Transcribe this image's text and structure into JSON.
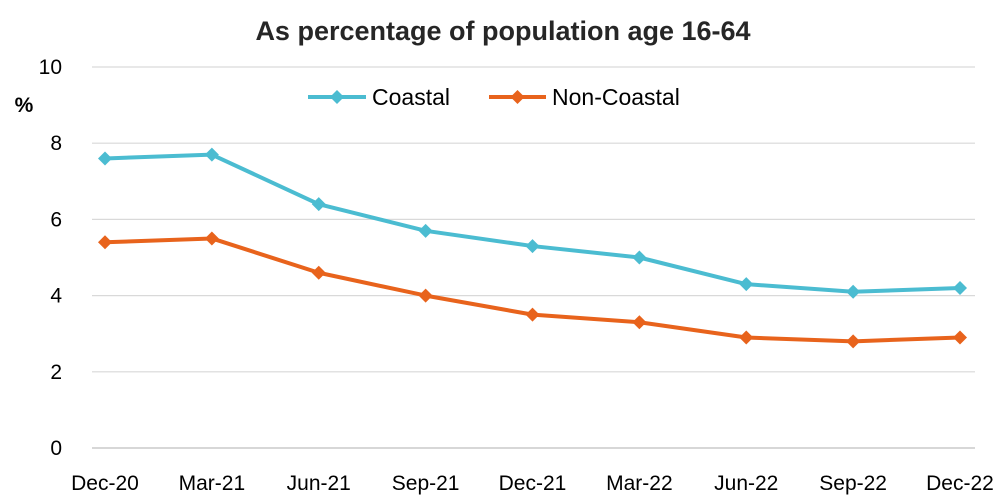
{
  "chart_data": {
    "type": "line",
    "title": "As percentage of population age 16-64",
    "ylabel": "%",
    "xlabel": "",
    "categories": [
      "Dec-20",
      "Mar-21",
      "Jun-21",
      "Sep-21",
      "Dec-21",
      "Mar-22",
      "Jun-22",
      "Sep-22",
      "Dec-22"
    ],
    "ylim": [
      0,
      10
    ],
    "yticks": [
      0,
      2,
      4,
      6,
      8,
      10
    ],
    "grid": true,
    "legend_position": "top-center",
    "series": [
      {
        "name": "Coastal",
        "color": "#4bbcd1",
        "marker": "diamond",
        "values": [
          7.6,
          7.7,
          6.4,
          5.7,
          5.3,
          5.0,
          4.3,
          4.1,
          4.2
        ]
      },
      {
        "name": "Non-Coastal",
        "color": "#e8631c",
        "marker": "diamond",
        "values": [
          5.4,
          5.5,
          4.6,
          4.0,
          3.5,
          3.3,
          2.9,
          2.8,
          2.9
        ]
      }
    ]
  }
}
